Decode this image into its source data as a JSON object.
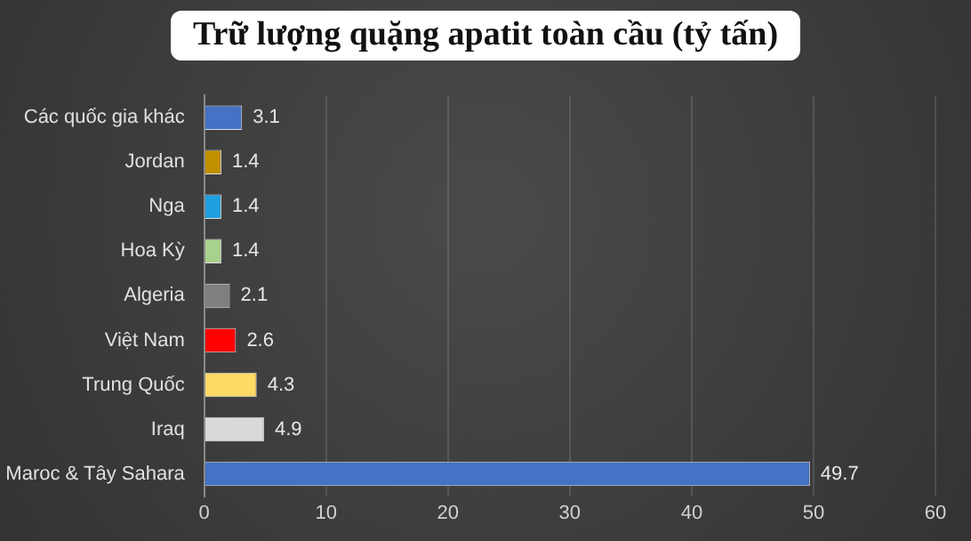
{
  "chart_data": {
    "type": "bar",
    "orientation": "horizontal",
    "title": "Trữ lượng quặng apatit toàn cầu (tỷ tấn)",
    "categories": [
      "Các quốc gia khác",
      "Jordan",
      "Nga",
      "Hoa Kỳ",
      "Algeria",
      "Việt Nam",
      "Trung Quốc",
      "Iraq",
      "Maroc & Tây Sahara"
    ],
    "values": [
      3.1,
      1.4,
      1.4,
      1.4,
      2.1,
      2.6,
      4.3,
      4.9,
      49.7
    ],
    "colors": [
      "#4472c4",
      "#bf9000",
      "#1f9fdf",
      "#a9d18e",
      "#7f7f7f",
      "#ff0000",
      "#ffd966",
      "#d9d9d9",
      "#4472c4"
    ],
    "xlim": [
      0,
      60
    ],
    "xticks": [
      0,
      10,
      20,
      30,
      40,
      50,
      60
    ],
    "grid": "x",
    "data_labels": true,
    "legend": false
  }
}
